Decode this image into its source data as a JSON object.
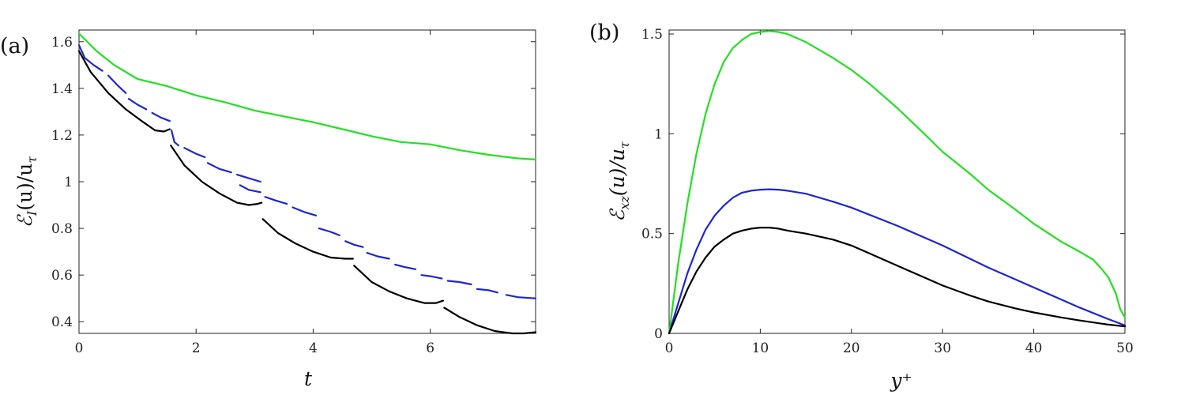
{
  "chart_data": [
    {
      "type": "line",
      "panel_label": "(a)",
      "title": "",
      "xlabel": "t",
      "ylabel": "ℰ_I(u)/u_τ",
      "ylabel_parts": {
        "E": "ℰ",
        "sub": "I",
        "rest": "(u)/u",
        "tau": "τ"
      },
      "xlim": [
        0,
        7.8
      ],
      "ylim": [
        0.35,
        1.65
      ],
      "xticks": [
        0,
        2,
        4,
        6
      ],
      "xtick_labels": [
        "0",
        "2",
        "4",
        "6"
      ],
      "yticks": [
        0.4,
        0.6,
        0.8,
        1.0,
        1.2,
        1.4,
        1.6
      ],
      "ytick_labels": [
        "0.4",
        "0.6",
        "0.8",
        "1",
        "1.2",
        "1.4",
        "1.6"
      ],
      "grid": false,
      "series": [
        {
          "name": "green",
          "color": "#22e022",
          "dashed": false,
          "segments": [
            [
              [
                0,
                1.635
              ],
              [
                0.3,
                1.56
              ],
              [
                0.6,
                1.5
              ],
              [
                1.0,
                1.44
              ],
              [
                1.5,
                1.41
              ],
              [
                2,
                1.37
              ],
              [
                2.5,
                1.34
              ],
              [
                3,
                1.305
              ],
              [
                3.5,
                1.28
              ],
              [
                4,
                1.255
              ],
              [
                4.5,
                1.225
              ],
              [
                5,
                1.195
              ],
              [
                5.5,
                1.17
              ],
              [
                6,
                1.16
              ],
              [
                6.5,
                1.135
              ],
              [
                7,
                1.115
              ],
              [
                7.5,
                1.1
              ],
              [
                7.8,
                1.095
              ]
            ]
          ]
        },
        {
          "name": "blue",
          "color": "#1f26d0",
          "dashed": true,
          "segments": [
            [
              [
                0,
                1.585
              ],
              [
                0.1,
                1.53
              ],
              [
                0.25,
                1.5
              ],
              [
                0.4,
                1.475
              ]
            ],
            [
              [
                0.5,
                1.455
              ],
              [
                0.65,
                1.415
              ],
              [
                0.8,
                1.38
              ]
            ],
            [
              [
                0.85,
                1.355
              ],
              [
                1.0,
                1.33
              ],
              [
                1.15,
                1.31
              ]
            ],
            [
              [
                1.25,
                1.295
              ],
              [
                1.4,
                1.275
              ],
              [
                1.55,
                1.26
              ]
            ],
            [
              [
                1.58,
                1.22
              ],
              [
                1.63,
                1.17
              ],
              [
                1.7,
                1.155
              ]
            ],
            [
              [
                1.8,
                1.145
              ],
              [
                2.0,
                1.12
              ],
              [
                2.15,
                1.105
              ]
            ],
            [
              [
                2.2,
                1.08
              ],
              [
                2.4,
                1.055
              ],
              [
                2.6,
                1.04
              ]
            ],
            [
              [
                2.7,
                1.03
              ],
              [
                2.9,
                1.015
              ],
              [
                3.1,
                1.0
              ]
            ],
            [
              [
                2.75,
                0.985
              ],
              [
                2.9,
                0.965
              ],
              [
                3.1,
                0.955
              ]
            ],
            [
              [
                3.18,
                0.935
              ],
              [
                3.35,
                0.92
              ],
              [
                3.55,
                0.905
              ]
            ],
            [
              [
                3.65,
                0.89
              ],
              [
                3.85,
                0.87
              ],
              [
                4.05,
                0.855
              ]
            ],
            [
              [
                4.1,
                0.8
              ],
              [
                4.3,
                0.785
              ],
              [
                4.45,
                0.77
              ]
            ],
            [
              [
                4.55,
                0.745
              ],
              [
                4.7,
                0.73
              ],
              [
                4.85,
                0.72
              ]
            ],
            [
              [
                4.92,
                0.695
              ],
              [
                5.1,
                0.68
              ],
              [
                5.3,
                0.67
              ]
            ],
            [
              [
                5.4,
                0.645
              ],
              [
                5.55,
                0.635
              ],
              [
                5.75,
                0.625
              ]
            ],
            [
              [
                5.85,
                0.6
              ],
              [
                6.0,
                0.595
              ],
              [
                6.2,
                0.585
              ]
            ],
            [
              [
                6.3,
                0.575
              ],
              [
                6.5,
                0.57
              ],
              [
                6.7,
                0.56
              ]
            ],
            [
              [
                6.8,
                0.54
              ],
              [
                7.0,
                0.535
              ],
              [
                7.15,
                0.525
              ]
            ],
            [
              [
                7.3,
                0.515
              ],
              [
                7.5,
                0.505
              ],
              [
                7.8,
                0.5
              ]
            ]
          ]
        },
        {
          "name": "black",
          "color": "#000000",
          "dashed": false,
          "segments": [
            [
              [
                0,
                1.56
              ],
              [
                0.2,
                1.47
              ],
              [
                0.5,
                1.38
              ],
              [
                0.8,
                1.31
              ],
              [
                1.1,
                1.255
              ],
              [
                1.3,
                1.22
              ],
              [
                1.45,
                1.215
              ],
              [
                1.55,
                1.225
              ]
            ],
            [
              [
                1.57,
                1.155
              ],
              [
                1.8,
                1.07
              ],
              [
                2.1,
                1.0
              ],
              [
                2.4,
                0.95
              ],
              [
                2.7,
                0.91
              ],
              [
                2.9,
                0.9
              ],
              [
                3.05,
                0.905
              ],
              [
                3.12,
                0.91
              ]
            ],
            [
              [
                3.14,
                0.84
              ],
              [
                3.4,
                0.78
              ],
              [
                3.7,
                0.735
              ],
              [
                4.0,
                0.7
              ],
              [
                4.3,
                0.675
              ],
              [
                4.55,
                0.67
              ],
              [
                4.68,
                0.67
              ]
            ],
            [
              [
                4.7,
                0.64
              ],
              [
                5.0,
                0.57
              ],
              [
                5.3,
                0.53
              ],
              [
                5.6,
                0.5
              ],
              [
                5.9,
                0.48
              ],
              [
                6.1,
                0.48
              ],
              [
                6.22,
                0.49
              ]
            ],
            [
              [
                6.24,
                0.46
              ],
              [
                6.5,
                0.42
              ],
              [
                6.8,
                0.385
              ],
              [
                7.1,
                0.36
              ],
              [
                7.4,
                0.35
              ],
              [
                7.6,
                0.35
              ],
              [
                7.8,
                0.355
              ]
            ]
          ]
        }
      ]
    },
    {
      "type": "line",
      "panel_label": "(b)",
      "title": "",
      "xlabel": "y⁺",
      "ylabel": "ℰ_xz(u)/u_τ",
      "ylabel_parts": {
        "E": "ℰ",
        "sub": "xz",
        "rest": "(u)/u",
        "tau": "τ"
      },
      "xlim": [
        0,
        50
      ],
      "ylim": [
        0,
        1.52
      ],
      "xticks": [
        0,
        10,
        20,
        30,
        40,
        50
      ],
      "xtick_labels": [
        "0",
        "10",
        "20",
        "30",
        "40",
        "50"
      ],
      "yticks": [
        0,
        0.5,
        1.0,
        1.5
      ],
      "ytick_labels": [
        "0",
        "0.5",
        "1",
        "1.5"
      ],
      "grid": false,
      "series": [
        {
          "name": "green",
          "color": "#22e022",
          "dashed": false,
          "segments": [
            [
              [
                0,
                0
              ],
              [
                1,
                0.35
              ],
              [
                2,
                0.65
              ],
              [
                3,
                0.9
              ],
              [
                4,
                1.1
              ],
              [
                5,
                1.25
              ],
              [
                6,
                1.36
              ],
              [
                7,
                1.43
              ],
              [
                8,
                1.47
              ],
              [
                9,
                1.5
              ],
              [
                10,
                1.51
              ],
              [
                11,
                1.515
              ],
              [
                12,
                1.51
              ],
              [
                13,
                1.5
              ],
              [
                15,
                1.46
              ],
              [
                18,
                1.38
              ],
              [
                20,
                1.32
              ],
              [
                22,
                1.25
              ],
              [
                25,
                1.13
              ],
              [
                28,
                1.0
              ],
              [
                30,
                0.91
              ],
              [
                33,
                0.8
              ],
              [
                35,
                0.72
              ],
              [
                38,
                0.62
              ],
              [
                40,
                0.55
              ],
              [
                43,
                0.46
              ],
              [
                45,
                0.41
              ],
              [
                46.5,
                0.37
              ],
              [
                47.5,
                0.32
              ],
              [
                48.2,
                0.28
              ],
              [
                49,
                0.2
              ],
              [
                49.5,
                0.12
              ],
              [
                50,
                0.08
              ]
            ]
          ]
        },
        {
          "name": "blue",
          "color": "#1f26d0",
          "dashed": false,
          "segments": [
            [
              [
                0,
                0
              ],
              [
                1,
                0.15
              ],
              [
                2,
                0.3
              ],
              [
                3,
                0.42
              ],
              [
                4,
                0.52
              ],
              [
                5,
                0.59
              ],
              [
                6,
                0.64
              ],
              [
                7,
                0.68
              ],
              [
                8,
                0.705
              ],
              [
                9,
                0.715
              ],
              [
                10,
                0.72
              ],
              [
                11,
                0.722
              ],
              [
                12,
                0.72
              ],
              [
                13,
                0.715
              ],
              [
                15,
                0.7
              ],
              [
                18,
                0.66
              ],
              [
                20,
                0.63
              ],
              [
                25,
                0.54
              ],
              [
                30,
                0.44
              ],
              [
                35,
                0.33
              ],
              [
                40,
                0.23
              ],
              [
                45,
                0.13
              ],
              [
                48,
                0.075
              ],
              [
                50,
                0.04
              ]
            ]
          ]
        },
        {
          "name": "black",
          "color": "#000000",
          "dashed": false,
          "segments": [
            [
              [
                0,
                0
              ],
              [
                1,
                0.11
              ],
              [
                2,
                0.22
              ],
              [
                3,
                0.31
              ],
              [
                4,
                0.38
              ],
              [
                5,
                0.435
              ],
              [
                6,
                0.47
              ],
              [
                7,
                0.5
              ],
              [
                8,
                0.515
              ],
              [
                9,
                0.525
              ],
              [
                10,
                0.53
              ],
              [
                11,
                0.53
              ],
              [
                12,
                0.525
              ],
              [
                13,
                0.515
              ],
              [
                15,
                0.5
              ],
              [
                18,
                0.47
              ],
              [
                20,
                0.44
              ],
              [
                22,
                0.4
              ],
              [
                25,
                0.34
              ],
              [
                28,
                0.28
              ],
              [
                30,
                0.24
              ],
              [
                33,
                0.19
              ],
              [
                35,
                0.16
              ],
              [
                38,
                0.125
              ],
              [
                40,
                0.105
              ],
              [
                43,
                0.08
              ],
              [
                45,
                0.065
              ],
              [
                48,
                0.045
              ],
              [
                50,
                0.035
              ]
            ]
          ]
        }
      ]
    }
  ]
}
